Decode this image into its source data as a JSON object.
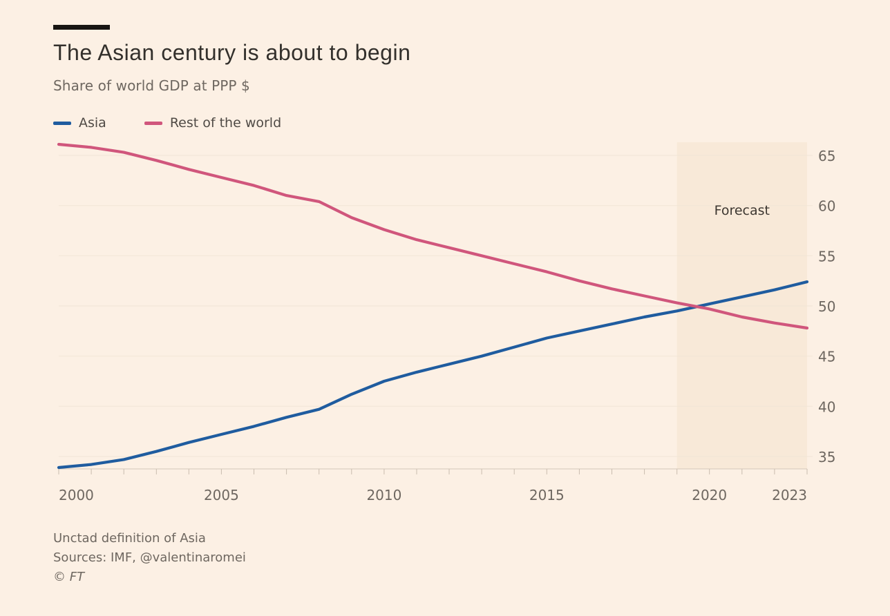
{
  "header": {
    "title": "The Asian century is about to begin",
    "subtitle": "Share of world GDP at PPP $"
  },
  "legend": [
    {
      "label": "Asia",
      "color": "#1f5c9f"
    },
    {
      "label": "Rest of the world",
      "color": "#d0567c"
    }
  ],
  "chart_data": {
    "type": "line",
    "title": "The Asian century is about to begin",
    "subtitle": "Share of world GDP at PPP $",
    "x": [
      2000,
      2001,
      2002,
      2003,
      2004,
      2005,
      2006,
      2007,
      2008,
      2009,
      2010,
      2011,
      2012,
      2013,
      2014,
      2015,
      2016,
      2017,
      2018,
      2019,
      2020,
      2021,
      2022,
      2023
    ],
    "series": [
      {
        "name": "Asia",
        "color": "#1f5c9f",
        "values": [
          33.9,
          34.2,
          34.7,
          35.5,
          36.4,
          37.2,
          38.0,
          38.9,
          39.7,
          41.2,
          42.5,
          43.4,
          44.2,
          45.0,
          45.9,
          46.8,
          47.5,
          48.2,
          48.9,
          49.5,
          50.2,
          50.9,
          51.6,
          52.4
        ]
      },
      {
        "name": "Rest of the world",
        "color": "#d0567c",
        "values": [
          66.1,
          65.8,
          65.3,
          64.5,
          63.6,
          62.8,
          62.0,
          61.0,
          60.4,
          58.8,
          57.6,
          56.6,
          55.8,
          55.0,
          54.2,
          53.4,
          52.5,
          51.7,
          51.0,
          50.3,
          49.7,
          48.9,
          48.3,
          47.8
        ]
      }
    ],
    "ylim": [
      33.7,
      66.4
    ],
    "y_ticks": [
      35,
      40,
      45,
      50,
      55,
      60,
      65
    ],
    "x_tick_labels": [
      {
        "label": "2000",
        "year": 2000,
        "align": "start"
      },
      {
        "label": "2005",
        "year": 2005,
        "align": "middle"
      },
      {
        "label": "2010",
        "year": 2010,
        "align": "middle"
      },
      {
        "label": "2015",
        "year": 2015,
        "align": "middle"
      },
      {
        "label": "2020",
        "year": 2020,
        "align": "middle"
      },
      {
        "label": "2023",
        "year": 2023,
        "align": "end"
      }
    ],
    "grid": "horizontal",
    "legend_position": "top-left",
    "forecast": {
      "start": 2019,
      "end": 2023,
      "label": "Forecast"
    }
  },
  "footnotes": {
    "note": "Unctad definition of Asia",
    "sources": "Sources: IMF, @valentinaromei",
    "copyright": "© FT"
  },
  "colors": {
    "background": "#fcf0e4",
    "forecast_band": "#f8e9d8",
    "gridline": "#f1e5d6",
    "axis": "#d5c8ba",
    "tick": "#c9bcae",
    "label": "#6e6760",
    "forecast_label": "#3d3731",
    "title": "#33302c",
    "kicker_bar": "#181512"
  }
}
